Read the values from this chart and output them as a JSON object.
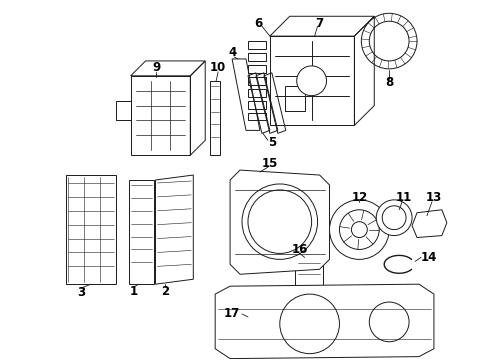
{
  "bg_color": "#ffffff",
  "line_color": "#1a1a1a",
  "label_color": "#000000",
  "label_fontsize": 8.5,
  "figsize": [
    4.9,
    3.6
  ],
  "dpi": 100,
  "lw": 0.7
}
